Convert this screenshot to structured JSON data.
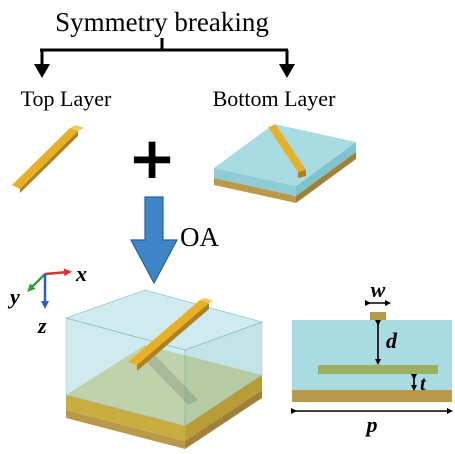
{
  "header": {
    "title": "Symmetry breaking"
  },
  "layers": {
    "top_label": "Top Layer",
    "bottom_label": "Bottom Layer",
    "plus_symbol": "+"
  },
  "process": {
    "arrow_label": "OA"
  },
  "axes": {
    "x_label": "x",
    "y_label": "y",
    "z_label": "z"
  },
  "cross_section": {
    "w_label": "w",
    "d_label": "d",
    "t_label": "t",
    "p_label": "p"
  },
  "colors": {
    "gold": "#e8b027",
    "gold_dark": "#b0801b",
    "cyan": "#a8dbe2",
    "cyan_dark": "#7ec3cd",
    "substrate": "#b99a4a",
    "arrow_blue": "#3f86c8"
  }
}
